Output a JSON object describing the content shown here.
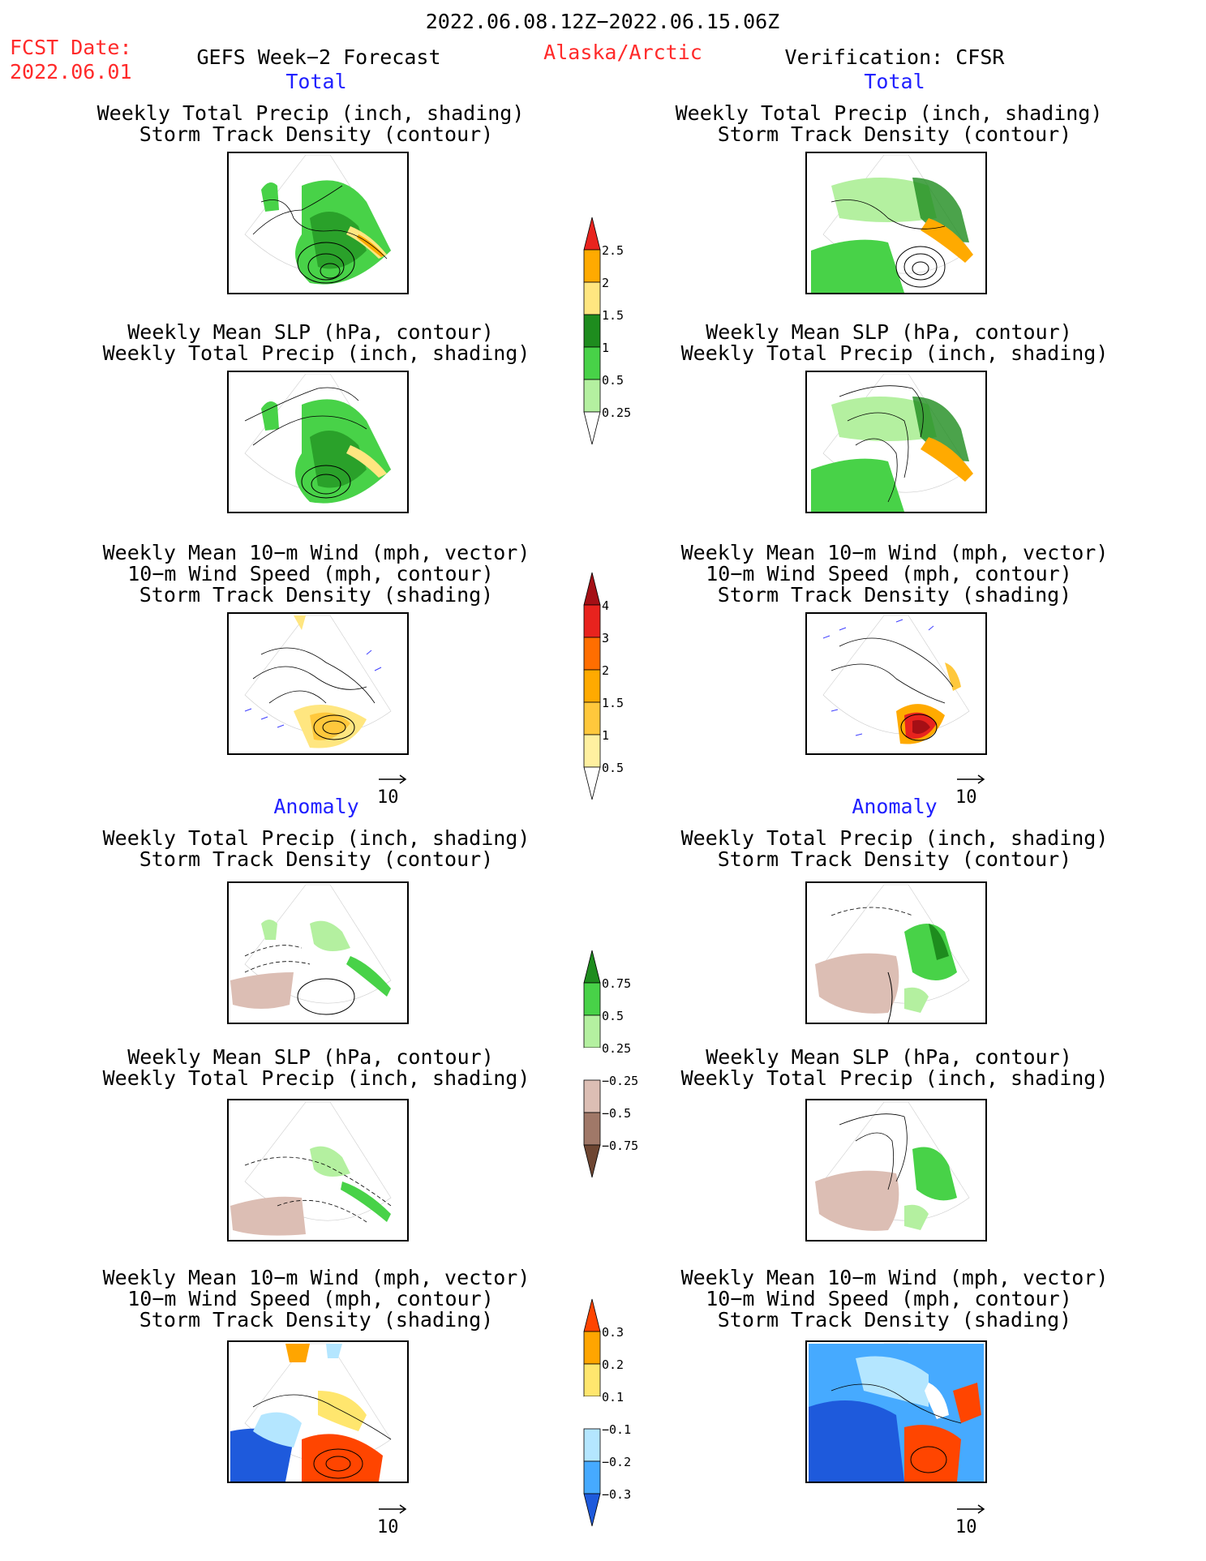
{
  "header": {
    "date_range": "2022.06.08.12Z−2022.06.15.06Z",
    "fcst_label": "FCST Date:",
    "fcst_date": "2022.06.01",
    "product": "GEFS Week−2 Forecast",
    "region": "Alaska/Arctic",
    "verification": "Verification: CFSR"
  },
  "sections": {
    "total": "Total",
    "anomaly": "Anomaly"
  },
  "titles": {
    "precip_storm": [
      "Weekly Total Precip (inch, shading)",
      "Storm Track Density (contour)"
    ],
    "slp_precip": [
      "Weekly Mean SLP (hPa, contour)",
      "Weekly Total Precip (inch, shading)"
    ],
    "wind_storm": [
      "Weekly Mean 10−m Wind (mph, vector)",
      "10−m Wind Speed (mph, contour)",
      "Storm Track Density (shading)"
    ]
  },
  "reference_vector": "10",
  "colorbars": {
    "precip_total": {
      "labels": [
        "2.5",
        "2",
        "1.5",
        "1",
        "0.5",
        "0.25"
      ],
      "colors": [
        "#e8231e",
        "#ffaa00",
        "#ffe680",
        "#1e8c1e",
        "#48d248",
        "#b4f0a0"
      ]
    },
    "storm_total": {
      "labels": [
        "4",
        "3",
        "2",
        "1.5",
        "1",
        "0.5"
      ],
      "colors": [
        "#a50f15",
        "#e8231e",
        "#ff6e00",
        "#ffaa00",
        "#ffc83c",
        "#fff0a0"
      ]
    },
    "precip_anom": {
      "labels": [
        "0.75",
        "0.5",
        "0.25",
        "−0.25",
        "−0.5",
        "−0.75"
      ],
      "colors": [
        "#1e8c1e",
        "#48d248",
        "#b4f0a0",
        "#ffffff",
        "#dcbeb4",
        "#a07868",
        "#6e4632"
      ]
    },
    "storm_anom": {
      "labels": [
        "0.3",
        "0.2",
        "0.1",
        "−0.1",
        "−0.2",
        "−0.3"
      ],
      "colors": [
        "#ff4500",
        "#ffa500",
        "#ffe66e",
        "#ffffff",
        "#b4e6ff",
        "#46aaff",
        "#1e5adc"
      ]
    }
  }
}
